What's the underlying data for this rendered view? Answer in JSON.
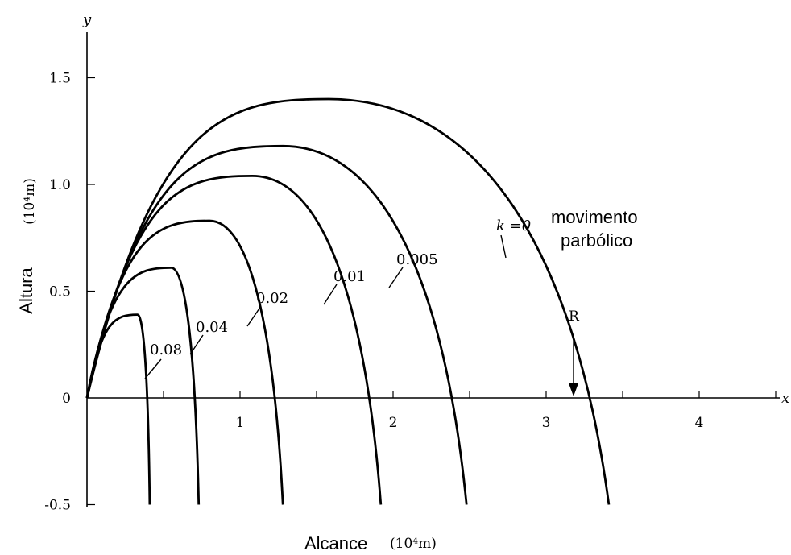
{
  "chart_data": {
    "type": "line",
    "xlabel": "Alcance",
    "xlabel_unit": "(10⁴m)",
    "ylabel": "Altura",
    "ylabel_unit": "(10⁴m)",
    "x_axis_letter": "x",
    "y_axis_letter": "y",
    "xlim": [
      0,
      4.5
    ],
    "ylim": [
      -0.5,
      1.7
    ],
    "x_ticks": [
      1,
      2,
      3,
      4
    ],
    "x_tick_labels": [
      "1",
      "2",
      "3",
      "4"
    ],
    "y_ticks": [
      -0.5,
      0,
      0.5,
      1.0,
      1.5
    ],
    "y_tick_labels": [
      "-0.5",
      "0",
      "0.5",
      "1.0",
      "1.5"
    ],
    "grid": false,
    "series": [
      {
        "name": "k =0",
        "label_suffix": "movimento parbólico",
        "apex": [
          1.58,
          1.4
        ],
        "x_at_y_neg_0_5": 3.41,
        "range_R": 3.17,
        "points": [
          [
            0,
            0
          ],
          [
            1.58,
            1.4
          ],
          [
            3.17,
            0
          ],
          [
            3.41,
            -0.5
          ]
        ]
      },
      {
        "name": "0.005",
        "apex": [
          1.28,
          1.18
        ],
        "x_at_y_neg_0_5": 2.48,
        "points": [
          [
            0,
            0
          ],
          [
            1.28,
            1.18
          ],
          [
            2.33,
            0
          ],
          [
            2.48,
            -0.5
          ]
        ]
      },
      {
        "name": "0.01",
        "apex": [
          1.08,
          1.04
        ],
        "x_at_y_neg_0_5": 1.92,
        "points": [
          [
            0,
            0
          ],
          [
            1.08,
            1.04
          ],
          [
            1.83,
            0
          ],
          [
            1.92,
            -0.5
          ]
        ]
      },
      {
        "name": "0.02",
        "apex": [
          0.8,
          0.83
        ],
        "x_at_y_neg_0_5": 1.28,
        "points": [
          [
            0,
            0
          ],
          [
            0.8,
            0.83
          ],
          [
            1.24,
            0
          ],
          [
            1.28,
            -0.5
          ]
        ]
      },
      {
        "name": "0.04",
        "apex": [
          0.55,
          0.61
        ],
        "x_at_y_neg_0_5": 0.73,
        "points": [
          [
            0,
            0
          ],
          [
            0.55,
            0.61
          ],
          [
            0.72,
            0
          ],
          [
            0.73,
            -0.5
          ]
        ]
      },
      {
        "name": "0.08",
        "apex": [
          0.33,
          0.39
        ],
        "x_at_y_neg_0_5": 0.41,
        "points": [
          [
            0,
            0
          ],
          [
            0.33,
            0.39
          ],
          [
            0.4,
            0
          ],
          [
            0.41,
            -0.5
          ]
        ]
      }
    ],
    "annotations": [
      {
        "text": "R",
        "x": 3.17,
        "y": 0
      }
    ]
  }
}
